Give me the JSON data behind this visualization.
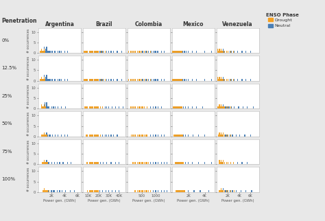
{
  "countries": [
    "Argentina",
    "Brazil",
    "Colombia",
    "Mexico",
    "Venezuela"
  ],
  "penetrations": [
    "0%",
    "12.5%",
    "25%",
    "50%",
    "75%",
    "100%"
  ],
  "colors": {
    "drought": "#F5A020",
    "neutral": "#4A7FB5"
  },
  "xlims": {
    "Argentina": [
      0,
      6500
    ],
    "Brazil": [
      5000,
      46000
    ],
    "Colombia": [
      0,
      1500
    ],
    "Mexico": [
      0,
      5200
    ],
    "Venezuela": [
      0,
      7500
    ]
  },
  "xticks": {
    "Argentina": [
      2000,
      4000,
      6000
    ],
    "Brazil": [
      10000,
      20000,
      30000,
      40000
    ],
    "Colombia": [
      500,
      1000
    ],
    "Mexico": [
      2000,
      4000
    ],
    "Venezuela": [
      2000,
      4000,
      6000
    ]
  },
  "xticklabels": {
    "Argentina": [
      "2K",
      "4K",
      "6K"
    ],
    "Brazil": [
      "10K",
      "20K",
      "30K",
      "40K"
    ],
    "Colombia": [
      "500",
      "1000"
    ],
    "Mexico": [
      "2K",
      "4K"
    ],
    "Venezuela": [
      "2K",
      "4K",
      "6K"
    ]
  },
  "xlabel": "Power gen. (GWh)",
  "ylabel": "# occurrences",
  "penetration_label": "Penetration",
  "legend_title": "ENSO Phase",
  "bg_color": "#e8e8e8",
  "panel_bg": "#ffffff",
  "ylim": [
    0,
    12
  ],
  "yticks": [
    0,
    5,
    10
  ],
  "neutral_data": {
    "Argentina": {
      "0": [
        500,
        600,
        700,
        800,
        900,
        900,
        1000,
        1100,
        1100,
        1200,
        1200,
        1300,
        1400,
        1500,
        1600,
        1800,
        2000,
        2200,
        2400,
        2600,
        3000,
        3200,
        3500,
        4000,
        4500
      ],
      "1": [
        500,
        600,
        700,
        800,
        900,
        900,
        1000,
        1100,
        1100,
        1200,
        1200,
        1300,
        1400,
        1500,
        1600,
        1800,
        2000,
        2200,
        2400,
        2600,
        3000,
        3200,
        3500,
        4000,
        4500
      ],
      "2": [
        600,
        700,
        800,
        900,
        950,
        1000,
        1050,
        1100,
        1200,
        1200,
        1300,
        1400,
        1500,
        1700,
        2000,
        2300,
        2600,
        3000,
        3500,
        4200
      ],
      "3": [
        800,
        900,
        1000,
        1100,
        1200,
        1300,
        1400,
        1600,
        1800,
        2200,
        2600,
        3000,
        3500,
        4000,
        4500
      ],
      "4": [
        1000,
        1100,
        1200,
        1300,
        1400,
        1500,
        1700,
        2000,
        2400,
        2800,
        3200,
        3800,
        4500,
        5000
      ],
      "5": [
        1500,
        1700,
        1900,
        2100,
        2300,
        2500,
        2800,
        3200,
        3700,
        4200,
        4800,
        5500
      ]
    },
    "Brazil": {
      "0": [
        8000,
        9000,
        10000,
        11000,
        12000,
        13000,
        14000,
        15000,
        16000,
        17000,
        18000,
        19000,
        20000,
        21000,
        22000,
        23000,
        24000,
        25000,
        26000,
        28000,
        30000,
        32000,
        35000,
        38000,
        42000
      ],
      "1": [
        8000,
        9000,
        10000,
        11000,
        12000,
        13000,
        14000,
        15000,
        16000,
        17000,
        18000,
        19000,
        20000,
        21000,
        22000,
        23000,
        24000,
        25000,
        26000,
        28000,
        30000,
        32000,
        35000,
        38000,
        42000
      ],
      "2": [
        8000,
        10000,
        12000,
        14000,
        16000,
        18000,
        20000,
        22000,
        24000,
        26000,
        28000,
        30000,
        33000,
        36000,
        40000,
        44000
      ],
      "3": [
        10000,
        12000,
        14000,
        16000,
        18000,
        20000,
        22000,
        24000,
        26000,
        28000,
        30000,
        32000,
        35000,
        38000
      ],
      "4": [
        10000,
        12000,
        14000,
        16000,
        18000,
        20000,
        22000,
        25000,
        28000,
        32000,
        36000,
        40000
      ],
      "5": [
        12000,
        15000,
        18000,
        21000,
        24000,
        27000,
        30000,
        33000,
        36000,
        40000
      ]
    },
    "Colombia": {
      "0": [
        100,
        150,
        200,
        250,
        300,
        350,
        400,
        450,
        500,
        550,
        600,
        650,
        700,
        750,
        800,
        850,
        900,
        950,
        1000,
        1050,
        1100,
        1200,
        1300
      ],
      "1": [
        100,
        150,
        200,
        250,
        300,
        350,
        400,
        450,
        500,
        550,
        600,
        650,
        700,
        750,
        800,
        850,
        900,
        950,
        1000,
        1050,
        1100,
        1200,
        1300
      ],
      "2": [
        150,
        200,
        250,
        300,
        400,
        500,
        600,
        700,
        800,
        900,
        1000,
        1100,
        1200
      ],
      "3": [
        200,
        300,
        400,
        500,
        600,
        700,
        800,
        900,
        1000,
        1100,
        1200,
        1300
      ],
      "4": [
        300,
        400,
        500,
        600,
        700,
        800,
        900,
        1000,
        1100,
        1200,
        1300,
        1400
      ],
      "5": [
        400,
        500,
        600,
        700,
        800,
        900,
        1000,
        1100,
        1200,
        1300,
        1400
      ]
    },
    "Mexico": {
      "0": [
        200,
        300,
        400,
        500,
        600,
        700,
        800,
        900,
        1000,
        1100,
        1200,
        1300,
        1500,
        1700,
        2000,
        2500,
        3000,
        4000,
        4800
      ],
      "1": [
        200,
        300,
        400,
        500,
        600,
        700,
        800,
        900,
        1000,
        1100,
        1200,
        1300,
        1500,
        1700,
        2000,
        2500,
        3000,
        4000,
        4800
      ],
      "2": [
        300,
        400,
        500,
        600,
        700,
        800,
        900,
        1000,
        1100,
        1200,
        1400,
        1600,
        2000,
        2500,
        3000,
        3800
      ],
      "3": [
        400,
        500,
        600,
        700,
        800,
        900,
        1000,
        1200,
        1400,
        1600,
        2000,
        2600,
        3200,
        4000
      ],
      "4": [
        500,
        600,
        700,
        800,
        900,
        1100,
        1300,
        1600,
        2000,
        2500,
        3200,
        4000,
        4800
      ],
      "5": [
        700,
        800,
        900,
        1000,
        1200,
        1500,
        2000,
        2700,
        3500,
        4500
      ]
    },
    "Venezuela": {
      "0": [
        500,
        600,
        700,
        800,
        900,
        1000,
        1100,
        1200,
        1300,
        1500,
        1700,
        2000,
        2300,
        2700,
        3200,
        3800,
        4500,
        5200,
        6000
      ],
      "1": [
        500,
        600,
        700,
        800,
        900,
        1000,
        1100,
        1200,
        1300,
        1500,
        1700,
        2000,
        2300,
        2700,
        3200,
        3800,
        4500,
        5200,
        6000
      ],
      "2": [
        600,
        700,
        800,
        900,
        1000,
        1100,
        1200,
        1400,
        1600,
        1900,
        2200,
        2700,
        3200,
        3900,
        4700,
        5500,
        6500
      ],
      "3": [
        700,
        800,
        900,
        1000,
        1100,
        1200,
        1400,
        1600,
        1900,
        2300,
        2800,
        3400,
        4100,
        5000,
        6000
      ],
      "4": [
        800,
        900,
        1000,
        1100,
        1200,
        1400,
        1700,
        2000,
        2500,
        3000,
        3700,
        4500,
        5500
      ],
      "5": [
        1000,
        1100,
        1200,
        1400,
        1600,
        1900,
        2300,
        2800,
        3500,
        4300,
        5200,
        6200
      ]
    }
  },
  "drought_data": {
    "Argentina": {
      "0": [
        300,
        400,
        500,
        600,
        700,
        800,
        900,
        1000
      ],
      "1": [
        300,
        400,
        500,
        600,
        700,
        800,
        900,
        1000
      ],
      "2": [
        400,
        500,
        600,
        700,
        800,
        900,
        1000,
        1100
      ],
      "3": [
        500,
        600,
        700,
        800,
        900,
        1000,
        1100,
        1200
      ],
      "4": [
        600,
        700,
        800,
        900,
        1000,
        1100,
        1200,
        1400
      ],
      "5": [
        700,
        800,
        900,
        1000,
        1100,
        1200,
        1400,
        1600
      ]
    },
    "Brazil": {
      "0": [
        6000,
        7000,
        8000,
        9000,
        10000,
        11000,
        12000,
        13000,
        14000,
        15000,
        16000,
        17000,
        18000,
        19000,
        20000,
        22000,
        24000,
        26000
      ],
      "1": [
        6000,
        7000,
        8000,
        9000,
        10000,
        11000,
        12000,
        13000,
        14000,
        15000,
        16000,
        17000,
        18000,
        19000,
        20000,
        22000,
        24000,
        26000
      ],
      "2": [
        7000,
        8000,
        9000,
        10000,
        11000,
        12000,
        13000,
        14000,
        15000,
        16000,
        17000,
        18000,
        19000,
        20000,
        22000,
        24000
      ],
      "3": [
        8000,
        9000,
        10000,
        11000,
        12000,
        13000,
        14000,
        15000,
        16000,
        17000,
        18000,
        19000,
        20000,
        22000
      ],
      "4": [
        9000,
        10000,
        11000,
        12000,
        13000,
        14000,
        15000,
        16000,
        17000,
        18000,
        19000,
        20000
      ],
      "5": [
        10000,
        11000,
        12000,
        13000,
        14000,
        15000,
        16000,
        17000,
        18000,
        19000,
        20000
      ]
    },
    "Colombia": {
      "0": [
        50,
        100,
        150,
        200,
        250,
        300,
        350,
        400,
        450,
        500,
        600,
        700,
        800
      ],
      "1": [
        50,
        100,
        150,
        200,
        250,
        300,
        350,
        400,
        450,
        500,
        600,
        700,
        800
      ],
      "2": [
        100,
        150,
        200,
        250,
        300,
        350,
        400,
        450,
        500,
        550,
        600,
        700
      ],
      "3": [
        150,
        200,
        250,
        300,
        350,
        400,
        450,
        500,
        550,
        600,
        650,
        700
      ],
      "4": [
        200,
        250,
        300,
        350,
        400,
        450,
        500,
        550,
        600,
        650,
        700,
        750
      ],
      "5": [
        250,
        300,
        350,
        400,
        450,
        500,
        550,
        600,
        650,
        700,
        750,
        800
      ]
    },
    "Mexico": {
      "0": [
        100,
        200,
        300,
        400,
        500,
        600,
        700,
        800,
        900,
        1000,
        1100,
        1200
      ],
      "1": [
        100,
        200,
        300,
        400,
        500,
        600,
        700,
        800,
        900,
        1000,
        1100,
        1200
      ],
      "2": [
        200,
        300,
        400,
        500,
        600,
        700,
        800,
        900,
        1000,
        1100,
        1200
      ],
      "3": [
        300,
        400,
        500,
        600,
        700,
        800,
        900,
        1000,
        1100,
        1200,
        1300
      ],
      "4": [
        400,
        500,
        600,
        700,
        800,
        900,
        1000,
        1100,
        1200,
        1300,
        1400
      ],
      "5": [
        500,
        600,
        700,
        800,
        900,
        1000,
        1100,
        1200,
        1300,
        1400,
        1500
      ]
    },
    "Venezuela": {
      "0": [
        200,
        300,
        400,
        500,
        600,
        700,
        800,
        900,
        1000,
        1200,
        1400,
        1700,
        2000,
        2500,
        3000
      ],
      "1": [
        200,
        300,
        400,
        500,
        600,
        700,
        800,
        900,
        1000,
        1200,
        1400,
        1700,
        2000,
        2500,
        3000
      ],
      "2": [
        300,
        400,
        500,
        600,
        700,
        800,
        900,
        1000,
        1100,
        1300,
        1500,
        1800,
        2100,
        2600
      ],
      "3": [
        400,
        500,
        600,
        700,
        800,
        900,
        1000,
        1100,
        1200,
        1400,
        1700,
        2000,
        2500
      ],
      "4": [
        500,
        600,
        700,
        800,
        900,
        1000,
        1100,
        1200,
        1400,
        1700,
        2000,
        2500,
        3000
      ],
      "5": [
        600,
        700,
        800,
        900,
        1000,
        1200,
        1400,
        1700,
        2100,
        2600,
        3200
      ]
    }
  }
}
